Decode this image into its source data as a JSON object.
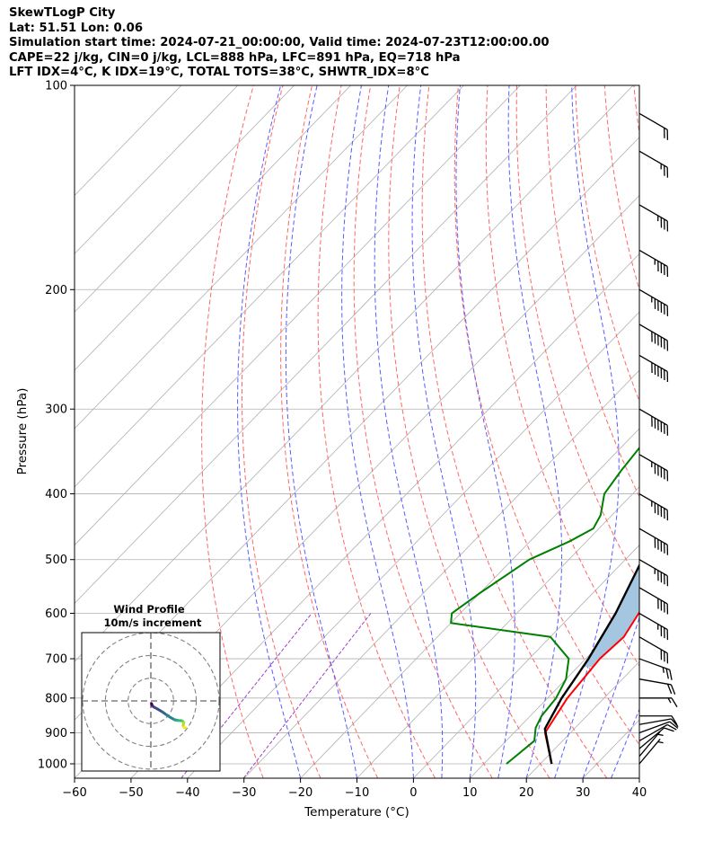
{
  "title_lines": [
    "SkewTLogP City",
    "Lat: 51.51   Lon: 0.06",
    "Simulation start time: 2024-07-21_00:00:00, Valid time: 2024-07-23T12:00:00.00",
    "CAPE=22 j/kg, CIN=0 j/kg, LCL=888 hPa, LFC=891 hPa, EQ=718 hPa",
    "LFT IDX=4°C, K IDX=19°C, TOTAL TOTS=38°C, SHWTR_IDX=8°C"
  ],
  "chart_data": {
    "type": "line",
    "subtype": "skew-t log-p",
    "xlabel": "Temperature (°C)",
    "ylabel": "Pressure (hPa)",
    "xlim": [
      -60,
      40
    ],
    "ylim": [
      1050,
      100
    ],
    "yscale": "log",
    "x_ticks": [
      -60,
      -50,
      -40,
      -30,
      -20,
      -10,
      0,
      10,
      20,
      30,
      40
    ],
    "x_tick_labels": [
      "−60",
      "−50",
      "−40",
      "−30",
      "−20",
      "−10",
      "0",
      "10",
      "20",
      "30",
      "40"
    ],
    "y_ticks": [
      1000,
      900,
      800,
      700,
      600,
      500,
      400,
      300,
      200,
      100
    ],
    "y_tick_labels": [
      "1000",
      "900",
      "800",
      "700",
      "600",
      "500",
      "400",
      "300",
      "200",
      "100"
    ],
    "grid": true,
    "colors": {
      "temperature": "#ff0000",
      "dewpoint": "#008000",
      "parcel": "#000000",
      "cape_fill": "#a4c6e0",
      "dry_adiabat": "#ff6666",
      "moist_adiabat": "#5a5aff",
      "mixing_ratio": "#9b40c8",
      "grid": "#b0b0b0"
    },
    "series": [
      {
        "key": "temperature",
        "points": [
          [
            22,
            1000
          ],
          [
            15.5,
            900
          ],
          [
            13.5,
            800
          ],
          [
            12.5,
            700
          ],
          [
            13,
            650
          ],
          [
            11,
            580
          ],
          [
            9.5,
            530
          ],
          [
            8,
            500
          ],
          [
            4,
            450
          ],
          [
            -1,
            400
          ],
          [
            -6,
            350
          ],
          [
            -10,
            300
          ],
          [
            -11,
            270
          ],
          [
            -10,
            250
          ],
          [
            -9,
            230
          ],
          [
            -8.5,
            210
          ],
          [
            -8.5,
            200
          ],
          [
            -8,
            185
          ],
          [
            -7.5,
            175
          ],
          [
            -8,
            165
          ],
          [
            -9,
            155
          ],
          [
            -11,
            145
          ],
          [
            -14,
            135
          ],
          [
            -16,
            125
          ],
          [
            -18,
            115
          ],
          [
            -19,
            105
          ],
          [
            -19,
            100
          ]
        ]
      },
      {
        "key": "dewpoint",
        "points": [
          [
            14,
            1000
          ],
          [
            15,
            925
          ],
          [
            13,
            885
          ],
          [
            12,
            850
          ],
          [
            11.5,
            800
          ],
          [
            10,
            750
          ],
          [
            7,
            700
          ],
          [
            0,
            650
          ],
          [
            -20,
            620
          ],
          [
            -21.5,
            600
          ],
          [
            -20,
            560
          ],
          [
            -17,
            500
          ],
          [
            -13,
            470
          ],
          [
            -11,
            450
          ],
          [
            -12,
            430
          ],
          [
            -15,
            400
          ],
          [
            -16,
            370
          ],
          [
            -17,
            330
          ],
          [
            -17,
            300
          ],
          [
            -19,
            270
          ],
          [
            -20,
            250
          ],
          [
            -21,
            230
          ],
          [
            -22,
            210
          ],
          [
            -23,
            200
          ],
          [
            -24,
            180
          ],
          [
            -27.5,
            175
          ],
          [
            -30,
            165
          ],
          [
            -30,
            150
          ],
          [
            -30,
            135
          ],
          [
            -31,
            115
          ],
          [
            -30.5,
            100
          ]
        ]
      },
      {
        "key": "parcel",
        "points": [
          [
            22,
            1000
          ],
          [
            14.8,
            888
          ],
          [
            12.5,
            800
          ],
          [
            10.5,
            700
          ],
          [
            7.5,
            600
          ],
          [
            3,
            500
          ],
          [
            -4.5,
            400
          ],
          [
            -17,
            300
          ],
          [
            -31,
            240
          ],
          [
            -38,
            200
          ],
          [
            -55,
            150
          ],
          [
            -60.5,
            130
          ],
          [
            -60.5,
            100
          ]
        ]
      }
    ],
    "wind_barbs_kt": [
      {
        "p": 1000,
        "speed": 5,
        "dir": 220
      },
      {
        "p": 975,
        "speed": 5,
        "dir": 220
      },
      {
        "p": 950,
        "speed": 10,
        "dir": 230
      },
      {
        "p": 925,
        "speed": 10,
        "dir": 240
      },
      {
        "p": 900,
        "speed": 10,
        "dir": 250
      },
      {
        "p": 875,
        "speed": 10,
        "dir": 260
      },
      {
        "p": 850,
        "speed": 10,
        "dir": 270
      },
      {
        "p": 800,
        "speed": 15,
        "dir": 270
      },
      {
        "p": 750,
        "speed": 20,
        "dir": 280
      },
      {
        "p": 700,
        "speed": 25,
        "dir": 290
      },
      {
        "p": 650,
        "speed": 30,
        "dir": 300
      },
      {
        "p": 600,
        "speed": 35,
        "dir": 300
      },
      {
        "p": 550,
        "speed": 40,
        "dir": 300
      },
      {
        "p": 500,
        "speed": 45,
        "dir": 300
      },
      {
        "p": 450,
        "speed": 50,
        "dir": 300
      },
      {
        "p": 400,
        "speed": 55,
        "dir": 300
      },
      {
        "p": 350,
        "speed": 55,
        "dir": 300
      },
      {
        "p": 300,
        "speed": 60,
        "dir": 300
      },
      {
        "p": 250,
        "speed": 60,
        "dir": 300
      },
      {
        "p": 225,
        "speed": 60,
        "dir": 300
      },
      {
        "p": 200,
        "speed": 55,
        "dir": 300
      },
      {
        "p": 175,
        "speed": 45,
        "dir": 300
      },
      {
        "p": 150,
        "speed": 35,
        "dir": 300
      },
      {
        "p": 125,
        "speed": 25,
        "dir": 300
      },
      {
        "p": 110,
        "speed": 20,
        "dir": 300
      }
    ],
    "inset": {
      "title_lines": [
        "Wind Profile",
        "10m/s increment"
      ],
      "rings": 3,
      "hodograph_uv": [
        [
          0.3,
          -1.2
        ],
        [
          0.5,
          -1.8
        ],
        [
          0.8,
          -2.3
        ],
        [
          1.5,
          -2.8
        ],
        [
          3,
          -3.6
        ],
        [
          5,
          -4.8
        ],
        [
          7,
          -6.2
        ],
        [
          9,
          -7.5
        ],
        [
          10.5,
          -8.3
        ],
        [
          12,
          -8.6
        ],
        [
          13.5,
          -8.7
        ],
        [
          14,
          -8.9
        ],
        [
          14.5,
          -9.6
        ],
        [
          14.2,
          -10.8
        ],
        [
          14.5,
          -11.6
        ],
        [
          15.2,
          -11.8
        ]
      ],
      "hodograph_colormap": "viridis"
    }
  }
}
